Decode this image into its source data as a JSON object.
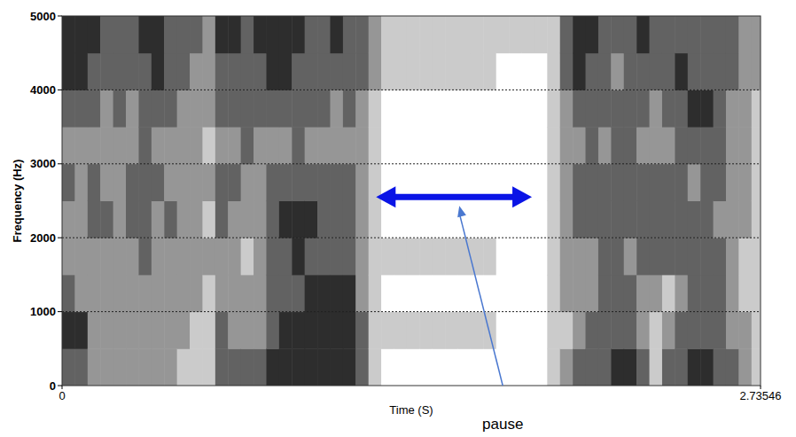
{
  "chart_data": {
    "type": "heatmap",
    "x_label": "Time (S)",
    "y_label": "Frequency (Hz)",
    "xlim": [
      0,
      2.73546
    ],
    "xticks": [
      0,
      2.73546
    ],
    "ylim": [
      0,
      5000
    ],
    "yticks": [
      0,
      1000,
      2000,
      3000,
      4000,
      5000
    ],
    "grid": true,
    "zlim": [
      0,
      4
    ],
    "x_bins": [
      0,
      0.05,
      0.1,
      0.15,
      0.2,
      0.25,
      0.3,
      0.35,
      0.4,
      0.45,
      0.5,
      0.55,
      0.6,
      0.65,
      0.7,
      0.75,
      0.8,
      0.85,
      0.9,
      0.95,
      1,
      1.05,
      1.1,
      1.15,
      1.2,
      1.25,
      1.3,
      1.35,
      1.4,
      1.45,
      1.5,
      1.55,
      1.6,
      1.65,
      1.7,
      1.75,
      1.8,
      1.85,
      1.9,
      1.95,
      2,
      2.05,
      2.1,
      2.15,
      2.2,
      2.25,
      2.3,
      2.35,
      2.4,
      2.45,
      2.5,
      2.55,
      2.6,
      2.65,
      2.7,
      2.75
    ],
    "y_bins": [
      0,
      500,
      1000,
      1500,
      2000,
      2500,
      3000,
      3500,
      4000,
      4500,
      5000
    ],
    "cells": [
      [
        3,
        4,
        3,
        2,
        2,
        3,
        2,
        3,
        4,
        4
      ],
      [
        3,
        4,
        2,
        2,
        2,
        2,
        2,
        3,
        4,
        4
      ],
      [
        2,
        2,
        2,
        2,
        3,
        3,
        2,
        3,
        3,
        4
      ],
      [
        2,
        2,
        2,
        2,
        3,
        2,
        2,
        2,
        3,
        3
      ],
      [
        2,
        2,
        2,
        2,
        2,
        2,
        2,
        3,
        3,
        3
      ],
      [
        2,
        2,
        2,
        2,
        3,
        3,
        2,
        2,
        3,
        3
      ],
      [
        2,
        2,
        2,
        3,
        3,
        3,
        3,
        3,
        3,
        4
      ],
      [
        2,
        2,
        2,
        2,
        2,
        3,
        2,
        3,
        4,
        4
      ],
      [
        2,
        2,
        2,
        2,
        3,
        2,
        2,
        3,
        3,
        3
      ],
      [
        1,
        2,
        2,
        2,
        2,
        2,
        2,
        2,
        3,
        3
      ],
      [
        1,
        1,
        2,
        2,
        2,
        2,
        2,
        2,
        2,
        3
      ],
      [
        1,
        1,
        1,
        2,
        1,
        2,
        1,
        2,
        2,
        2
      ],
      [
        3,
        3,
        2,
        2,
        3,
        3,
        2,
        3,
        3,
        4
      ],
      [
        3,
        2,
        2,
        2,
        2,
        3,
        2,
        3,
        3,
        4
      ],
      [
        3,
        2,
        2,
        1,
        2,
        2,
        3,
        3,
        3,
        3
      ],
      [
        3,
        2,
        2,
        2,
        2,
        2,
        2,
        3,
        3,
        4
      ],
      [
        4,
        3,
        3,
        3,
        3,
        3,
        2,
        3,
        4,
        4
      ],
      [
        4,
        4,
        3,
        3,
        4,
        3,
        2,
        3,
        4,
        4
      ],
      [
        4,
        4,
        3,
        4,
        4,
        3,
        3,
        3,
        3,
        4
      ],
      [
        4,
        4,
        4,
        3,
        4,
        3,
        2,
        3,
        3,
        3
      ],
      [
        4,
        4,
        4,
        3,
        3,
        3,
        2,
        3,
        3,
        3
      ],
      [
        4,
        4,
        4,
        3,
        3,
        3,
        2,
        2,
        3,
        4
      ],
      [
        4,
        4,
        4,
        3,
        3,
        3,
        2,
        3,
        3,
        3
      ],
      [
        3,
        3,
        2,
        2,
        2,
        2,
        2,
        2,
        3,
        3
      ],
      [
        1,
        1,
        1,
        1,
        1,
        1,
        1,
        1,
        2,
        2
      ],
      [
        0,
        1,
        0,
        1,
        0,
        0,
        0,
        0,
        1,
        1
      ],
      [
        0,
        1,
        0,
        1,
        0,
        0,
        0,
        0,
        1,
        1
      ],
      [
        0,
        1,
        0,
        1,
        0,
        0,
        0,
        0,
        1,
        1
      ],
      [
        0,
        1,
        0,
        1,
        0,
        0,
        0,
        0,
        1,
        1
      ],
      [
        0,
        1,
        0,
        1,
        0,
        0,
        0,
        0,
        1,
        1
      ],
      [
        0,
        1,
        0,
        1,
        0,
        0,
        0,
        0,
        1,
        1
      ],
      [
        0,
        1,
        0,
        1,
        0,
        0,
        0,
        0,
        1,
        1
      ],
      [
        0,
        1,
        0,
        1,
        0,
        0,
        0,
        0,
        1,
        1
      ],
      [
        0,
        1,
        0,
        1,
        0,
        0,
        0,
        0,
        1,
        1
      ],
      [
        0,
        0,
        0,
        0,
        0,
        0,
        0,
        0,
        0,
        1
      ],
      [
        0,
        0,
        0,
        0,
        0,
        0,
        0,
        0,
        0,
        1
      ],
      [
        0,
        0,
        0,
        0,
        0,
        0,
        0,
        0,
        0,
        1
      ],
      [
        0,
        0,
        0,
        0,
        0,
        0,
        0,
        0,
        0,
        1
      ],
      [
        1,
        1,
        1,
        1,
        1,
        1,
        1,
        1,
        1,
        1
      ],
      [
        2,
        1,
        2,
        2,
        2,
        2,
        2,
        2,
        3,
        3
      ],
      [
        3,
        2,
        2,
        2,
        3,
        3,
        2,
        3,
        4,
        4
      ],
      [
        3,
        3,
        2,
        2,
        3,
        3,
        3,
        3,
        3,
        4
      ],
      [
        3,
        3,
        3,
        3,
        3,
        3,
        2,
        3,
        3,
        3
      ],
      [
        4,
        3,
        3,
        3,
        3,
        3,
        3,
        3,
        2,
        3
      ],
      [
        4,
        3,
        3,
        2,
        3,
        3,
        3,
        3,
        3,
        3
      ],
      [
        3,
        2,
        2,
        3,
        3,
        3,
        2,
        3,
        3,
        4
      ],
      [
        1,
        1,
        2,
        3,
        3,
        3,
        2,
        2,
        3,
        3
      ],
      [
        3,
        2,
        1,
        3,
        3,
        3,
        2,
        3,
        3,
        3
      ],
      [
        3,
        3,
        2,
        3,
        3,
        3,
        3,
        3,
        4,
        3
      ],
      [
        4,
        3,
        3,
        3,
        3,
        2,
        3,
        4,
        3,
        3
      ],
      [
        4,
        3,
        3,
        3,
        3,
        3,
        3,
        4,
        3,
        3
      ],
      [
        3,
        3,
        3,
        3,
        2,
        3,
        3,
        3,
        3,
        3
      ],
      [
        3,
        2,
        2,
        2,
        2,
        2,
        2,
        2,
        3,
        3
      ],
      [
        2,
        2,
        1,
        1,
        2,
        2,
        2,
        2,
        2,
        2
      ],
      [
        1,
        1,
        1,
        1,
        1,
        1,
        1,
        1,
        2,
        2
      ]
    ],
    "annotations": [
      {
        "text": "pause",
        "x_start": 1.23,
        "x_end": 1.84,
        "y": 2550
      }
    ]
  }
}
